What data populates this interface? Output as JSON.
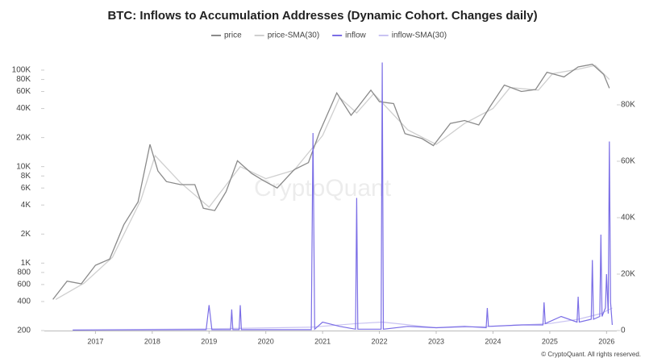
{
  "chart_data": {
    "type": "line",
    "title": "BTC: Inflows to Accumulation Addresses (Dynamic Cohort. Changes daily)",
    "watermark": "CryptoQuant",
    "footer": "© CryptoQuant. All rights reserved.",
    "log_scale_y": true,
    "grid": false,
    "legend": "top",
    "xlim": [
      2016.1,
      2026.18
    ],
    "xticks": [
      2017,
      2018,
      2019,
      2020,
      2021,
      2022,
      2023,
      2024,
      2025,
      2026
    ],
    "ylim": [
      200,
      168000
    ],
    "yticks": [
      200,
      400,
      600,
      800,
      {
        "value": 1000,
        "label": "1K"
      },
      {
        "value": 2000,
        "label": "2K"
      },
      {
        "value": 4000,
        "label": "4K"
      },
      {
        "value": 6000,
        "label": "6K"
      },
      {
        "value": 8000,
        "label": "8K"
      },
      {
        "value": 10000,
        "label": "10K"
      },
      {
        "value": 20000,
        "label": "20K"
      },
      {
        "value": 40000,
        "label": "40K"
      },
      {
        "value": 60000,
        "label": "60K"
      },
      {
        "value": 80000,
        "label": "80K"
      },
      {
        "value": 100000,
        "label": "100K"
      }
    ],
    "y2lim": [
      0,
      100000
    ],
    "y2ticks": [
      0,
      {
        "value": 20000,
        "label": "20K"
      },
      {
        "value": 40000,
        "label": "40K"
      },
      {
        "value": 60000,
        "label": "60K"
      },
      {
        "value": 80000,
        "label": "80K"
      }
    ],
    "series": [
      {
        "name": "price",
        "color": "#8a8a8a",
        "x": [
          2016.25,
          2016.5,
          2016.75,
          2017.0,
          2017.25,
          2017.5,
          2017.75,
          2017.96,
          2018.1,
          2018.25,
          2018.5,
          2018.75,
          2018.9,
          2019.1,
          2019.3,
          2019.5,
          2019.75,
          2019.95,
          2020.2,
          2020.5,
          2020.75,
          2020.95,
          2021.25,
          2021.5,
          2021.6,
          2021.85,
          2022.0,
          2022.25,
          2022.45,
          2022.75,
          2022.95,
          2023.25,
          2023.5,
          2023.75,
          2023.95,
          2024.2,
          2024.5,
          2024.75,
          2024.95,
          2025.25,
          2025.5,
          2025.75,
          2025.95,
          2026.05
        ],
        "values": [
          420,
          650,
          610,
          950,
          1100,
          2500,
          4300,
          17000,
          9000,
          7000,
          6500,
          6500,
          3700,
          3500,
          5500,
          11500,
          8500,
          7200,
          6000,
          9300,
          11000,
          23000,
          58000,
          34000,
          40000,
          62000,
          47000,
          45000,
          22000,
          19500,
          16500,
          28000,
          30000,
          27000,
          42000,
          70000,
          60000,
          63000,
          95000,
          85000,
          108000,
          115000,
          90000,
          65000
        ]
      },
      {
        "name": "price-SMA(30)",
        "color": "#cfcfcf",
        "x": [
          2016.3,
          2016.8,
          2017.3,
          2017.8,
          2018.05,
          2018.5,
          2019.0,
          2019.55,
          2020.0,
          2020.5,
          2021.0,
          2021.3,
          2021.6,
          2021.9,
          2022.5,
          2023.0,
          2023.5,
          2024.0,
          2024.3,
          2024.8,
          2025.05,
          2025.5,
          2025.8,
          2026.05
        ],
        "values": [
          420,
          620,
          1150,
          4500,
          13000,
          6800,
          3800,
          10000,
          7500,
          9200,
          21000,
          52000,
          36000,
          57000,
          24000,
          17000,
          28000,
          40000,
          66000,
          62000,
          92000,
          102000,
          112000,
          80000
        ]
      },
      {
        "name": "inflow",
        "color": "#7b6ee6",
        "axis": "y2",
        "x": [
          2016.6,
          2018.95,
          2019.0,
          2019.05,
          2019.38,
          2019.4,
          2019.42,
          2019.53,
          2019.55,
          2019.57,
          2020.8,
          2020.83,
          2020.86,
          2021.0,
          2021.3,
          2021.58,
          2021.6,
          2021.62,
          2022.03,
          2022.05,
          2022.07,
          2022.5,
          2023.0,
          2023.5,
          2023.88,
          2023.9,
          2023.92,
          2024.5,
          2024.88,
          2024.9,
          2024.92,
          2025.2,
          2025.48,
          2025.5,
          2025.52,
          2025.73,
          2025.75,
          2025.77,
          2025.88,
          2025.9,
          2025.92,
          2025.98,
          2026.0,
          2026.03,
          2026.05,
          2026.07,
          2026.1
        ],
        "values": [
          200,
          300,
          9000,
          300,
          300,
          7500,
          300,
          300,
          9000,
          300,
          300,
          70000,
          500,
          3000,
          1500,
          500,
          47000,
          500,
          500,
          95000,
          500,
          1500,
          1000,
          1500,
          1000,
          8000,
          1500,
          2000,
          2000,
          10000,
          2500,
          5000,
          3000,
          12000,
          3000,
          4000,
          25000,
          4000,
          5000,
          34000,
          5000,
          8000,
          20000,
          6000,
          67000,
          10000,
          2000
        ]
      },
      {
        "name": "inflow-SMA(30)",
        "color": "#c9c3f2",
        "axis": "y2",
        "x": [
          2016.6,
          2019.0,
          2020.8,
          2021.6,
          2022.05,
          2023.0,
          2024.0,
          2025.0,
          2025.5,
          2025.9,
          2026.1
        ],
        "values": [
          200,
          600,
          1200,
          2500,
          3000,
          1000,
          1500,
          2500,
          4000,
          6000,
          8000
        ]
      }
    ]
  }
}
